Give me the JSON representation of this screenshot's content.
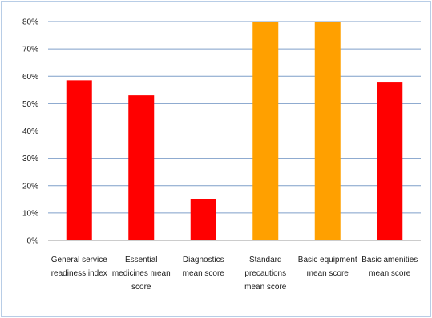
{
  "chart_data": {
    "type": "bar",
    "categories": [
      [
        "General service",
        "readiness index"
      ],
      [
        "Essential",
        "medicines mean",
        "score"
      ],
      [
        "Diagnostics",
        "mean score"
      ],
      [
        "Standard",
        "precautions",
        "mean score"
      ],
      [
        "Basic equipment",
        "mean score"
      ],
      [
        "Basic amenities",
        "mean score"
      ]
    ],
    "values": [
      58.5,
      53,
      15,
      80,
      80,
      58
    ],
    "bar_colors": [
      "#ff0000",
      "#ff0000",
      "#ff0000",
      "#ffa000",
      "#ffa000",
      "#ff0000"
    ],
    "ylim": [
      0,
      80
    ],
    "yticks": [
      "0%",
      "10%",
      "20%",
      "30%",
      "40%",
      "50%",
      "60%",
      "70%",
      "80%"
    ],
    "grid": true,
    "gridline_color": "#7f9fc9"
  }
}
